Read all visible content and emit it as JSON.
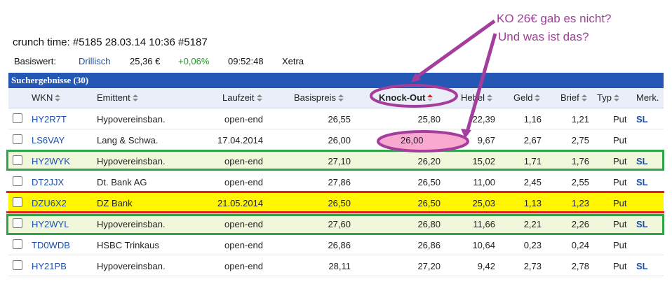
{
  "crunch_time": "crunch time: #5185 28.03.14 10:36 #5187",
  "basiswert": {
    "label": "Basiswert:",
    "name": "Drillisch",
    "price": "25,36 €",
    "change": "+0,06%",
    "time": "09:52:48",
    "exchange": "Xetra"
  },
  "panel": {
    "title": "Suchergebnisse (30)"
  },
  "columns": {
    "wkn": "WKN",
    "emittent": "Emittent",
    "laufzeit": "Laufzeit",
    "basispreis": "Basispreis",
    "knockout": "Knock-Out",
    "hebel": "Hebel",
    "geld": "Geld",
    "brief": "Brief",
    "typ": "Typ",
    "merk": "Merk."
  },
  "rows": [
    {
      "wkn": "HY2R7T",
      "emittent": "Hypovereinsban.",
      "laufzeit": "open-end",
      "basispreis": "26,55",
      "knockout": "25,80",
      "hebel": "22,39",
      "geld": "1,16",
      "brief": "1,21",
      "typ": "Put",
      "merk": "SL"
    },
    {
      "wkn": "LS6VAY",
      "emittent": "Lang & Schwa.",
      "laufzeit": "17.04.2014",
      "basispreis": "26,00",
      "knockout": "26,00",
      "hebel": "9,67",
      "geld": "2,67",
      "brief": "2,75",
      "typ": "Put",
      "merk": ""
    },
    {
      "wkn": "HY2WYK",
      "emittent": "Hypovereinsban.",
      "laufzeit": "open-end",
      "basispreis": "27,10",
      "knockout": "26,20",
      "hebel": "15,02",
      "geld": "1,71",
      "brief": "1,76",
      "typ": "Put",
      "merk": "SL"
    },
    {
      "wkn": "DT2JJX",
      "emittent": "Dt. Bank AG",
      "laufzeit": "open-end",
      "basispreis": "27,86",
      "knockout": "26,50",
      "hebel": "11,00",
      "geld": "2,45",
      "brief": "2,55",
      "typ": "Put",
      "merk": "SL"
    },
    {
      "wkn": "DZU6X2",
      "emittent": "DZ Bank",
      "laufzeit": "21.05.2014",
      "basispreis": "26,50",
      "knockout": "26,50",
      "hebel": "25,03",
      "geld": "1,13",
      "brief": "1,23",
      "typ": "Put",
      "merk": ""
    },
    {
      "wkn": "HY2WYL",
      "emittent": "Hypovereinsban.",
      "laufzeit": "open-end",
      "basispreis": "27,60",
      "knockout": "26,80",
      "hebel": "11,66",
      "geld": "2,21",
      "brief": "2,26",
      "typ": "Put",
      "merk": "SL"
    },
    {
      "wkn": "TD0WDB",
      "emittent": "HSBC Trinkaus",
      "laufzeit": "open-end",
      "basispreis": "26,86",
      "knockout": "26,86",
      "hebel": "10,64",
      "geld": "0,23",
      "brief": "0,24",
      "typ": "Put",
      "merk": ""
    },
    {
      "wkn": "HY21PB",
      "emittent": "Hypovereinsban.",
      "laufzeit": "open-end",
      "basispreis": "28,11",
      "knockout": "27,20",
      "hebel": "9,42",
      "geld": "2,73",
      "brief": "2,78",
      "typ": "Put",
      "merk": "SL"
    }
  ],
  "annotation": {
    "line1": "KO 26€ gab es nicht?",
    "line2": "Und was ist das?",
    "color": "#a43d9b",
    "highlight_fill": "#f9a9cf"
  },
  "colors": {
    "panel_header": "#2558b5",
    "link": "#1d4fa8",
    "positive": "#1e9e1e",
    "green_frame": "#2fa44a",
    "red_frame": "#e02020",
    "yellow_row": "#fff600",
    "green_row": "#f1f7da"
  }
}
